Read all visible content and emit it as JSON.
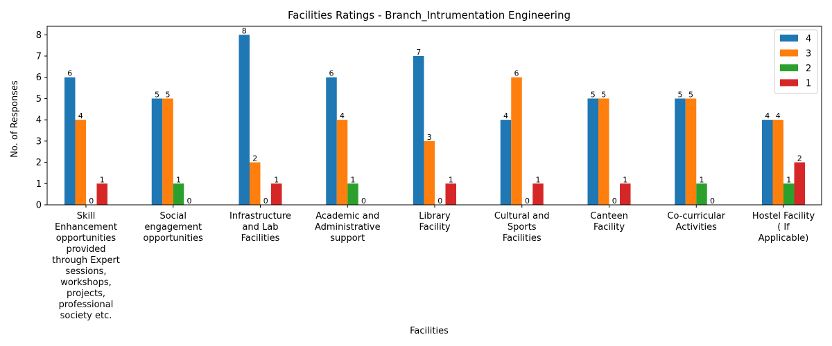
{
  "chart_data": {
    "type": "bar",
    "title": "Facilities Ratings - Branch_Intrumentation Engineering",
    "xlabel": "Facilities",
    "ylabel": "No. of Responses",
    "ylim": [
      0,
      8.4
    ],
    "yticks": [
      0,
      1,
      2,
      3,
      4,
      5,
      6,
      7,
      8
    ],
    "legend_position": "top-right",
    "grid": false,
    "categories": [
      [
        "Skill",
        "Enhancement",
        "opportunities",
        "provided",
        "through Expert",
        "sessions,",
        "workshops,",
        "projects,",
        "professional",
        "society etc."
      ],
      [
        "Social",
        "engagement",
        "opportunities"
      ],
      [
        "Infrastructure",
        "and Lab",
        "Facilities"
      ],
      [
        "Academic and",
        "Administrative",
        "support"
      ],
      [
        "Library",
        "Facility"
      ],
      [
        "Cultural and",
        "Sports",
        "Facilities"
      ],
      [
        "Canteen",
        "Facility"
      ],
      [
        "Co-curricular",
        "Activities"
      ],
      [
        "Hostel Facility",
        "( If",
        "Applicable)"
      ]
    ],
    "series": [
      {
        "name": "4",
        "color": "#1f77b4",
        "values": [
          6,
          5,
          8,
          6,
          7,
          4,
          5,
          5,
          4
        ],
        "labels": [
          "6",
          "5",
          "8",
          "6",
          "7",
          "4",
          "5",
          "5",
          "4"
        ]
      },
      {
        "name": "3",
        "color": "#ff7f0e",
        "values": [
          4,
          5,
          2,
          4,
          3,
          6,
          5,
          5,
          4
        ],
        "labels": [
          "4",
          "5",
          "2",
          "4",
          "3",
          "6",
          "5",
          "5",
          "4"
        ]
      },
      {
        "name": "2",
        "color": "#2ca02c",
        "values": [
          0,
          1,
          0,
          1,
          0,
          0,
          0,
          1,
          1
        ],
        "labels": [
          "0",
          "1",
          "0",
          "1",
          "0",
          "0",
          "0",
          "1",
          "1"
        ]
      },
      {
        "name": "1",
        "color": "#d62728",
        "values": [
          1,
          0,
          1,
          0,
          1,
          1,
          1,
          0,
          2
        ],
        "labels": [
          "1",
          "0",
          "1",
          "0",
          "1",
          "1",
          "1",
          "0",
          "2"
        ]
      }
    ]
  }
}
